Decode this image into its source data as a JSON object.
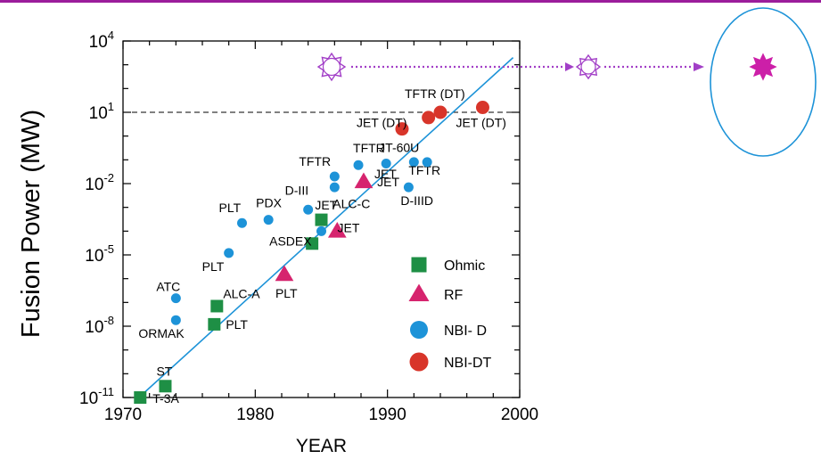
{
  "colors": {
    "top_line": "#9b1d9b",
    "ohmic": "#1e8f45",
    "rf": "#d6246e",
    "nbi_d": "#1d93d8",
    "nbi_dt": "#d8352a",
    "trend": "#1d93d8",
    "target": "#cc1fa8",
    "arrow": "#a23fc7",
    "ellipse": "#1d93d8"
  },
  "chart_data": {
    "type": "scatter",
    "xlabel": "YEAR",
    "ylabel": "Fusion Power (MW)",
    "xlim": [
      1970,
      2000
    ],
    "ylim_exponent": [
      -11,
      4
    ],
    "y_scale": "log10",
    "x_ticks": [
      "1970",
      "1980",
      "1990",
      "2000"
    ],
    "y_ticks": [
      {
        "base": "10",
        "exp": "4",
        "value": 10000.0
      },
      {
        "base": "10",
        "exp": "1",
        "value": 10
      },
      {
        "base": "10",
        "exp": "-2",
        "value": 0.01
      },
      {
        "base": "10",
        "exp": "-5",
        "value": 1e-05
      },
      {
        "base": "10",
        "exp": "-8",
        "value": 1e-08
      },
      {
        "base": "10",
        "exp": "-11",
        "value": 1e-11
      }
    ],
    "reference_line": {
      "y": 10,
      "style": "dashed"
    },
    "trend_line": {
      "points": [
        [
          1971.2,
          1e-11
        ],
        [
          1999.5,
          2000
        ]
      ]
    },
    "legend": {
      "placement": "bottom-right",
      "entries": [
        {
          "series": "Ohmic",
          "label": "Ohmic"
        },
        {
          "series": "RF",
          "label": "RF"
        },
        {
          "series": "NBI-D",
          "label": "NBI- D"
        },
        {
          "series": "NBI-DT",
          "label": "NBI-DT"
        }
      ]
    },
    "series": [
      {
        "name": "Ohmic",
        "marker": "square",
        "points": [
          {
            "x": 1971.3,
            "y": 1e-11,
            "label": "T-3A"
          },
          {
            "x": 1973.2,
            "y": 3e-11,
            "label": "ST"
          },
          {
            "x": 1976.9,
            "y": 1.2e-08,
            "label": "PLT"
          },
          {
            "x": 1977.1,
            "y": 7e-08,
            "label": "ALC-A"
          },
          {
            "x": 1984.3,
            "y": 3e-05,
            "label": "ASDEX"
          },
          {
            "x": 1985.0,
            "y": 0.0003,
            "label": ""
          }
        ]
      },
      {
        "name": "RF",
        "marker": "triangle",
        "points": [
          {
            "x": 1982.2,
            "y": 1.5e-06,
            "label": "PLT"
          },
          {
            "x": 1986.2,
            "y": 0.0001,
            "label": "ALC-C"
          },
          {
            "x": 1988.2,
            "y": 0.012,
            "label": "JET"
          }
        ]
      },
      {
        "name": "NBI-D",
        "marker": "circle",
        "points": [
          {
            "x": 1974.0,
            "y": 1.8e-08,
            "label": "ORMAK"
          },
          {
            "x": 1974.0,
            "y": 1.5e-07,
            "label": "ATC"
          },
          {
            "x": 1978.0,
            "y": 1.2e-05,
            "label": "PLT"
          },
          {
            "x": 1979.0,
            "y": 0.00022,
            "label": "PLT"
          },
          {
            "x": 1981.0,
            "y": 0.0003,
            "label": "PDX"
          },
          {
            "x": 1984.0,
            "y": 0.0008,
            "label": "D-III"
          },
          {
            "x": 1985.0,
            "y": 0.0001,
            "label": "JET"
          },
          {
            "x": 1986.0,
            "y": 0.007,
            "label": "JET"
          },
          {
            "x": 1986.0,
            "y": 0.02,
            "label": "TFTR"
          },
          {
            "x": 1987.8,
            "y": 0.06,
            "label": "TFTR"
          },
          {
            "x": 1989.9,
            "y": 0.07,
            "label": "JT-60U"
          },
          {
            "x": 1991.6,
            "y": 0.007,
            "label": "D-IIID"
          },
          {
            "x": 1992.0,
            "y": 0.08,
            "label": "TFTR"
          },
          {
            "x": 1993.0,
            "y": 0.08,
            "label": "JET"
          }
        ]
      },
      {
        "name": "NBI-DT",
        "marker": "circle",
        "points": [
          {
            "x": 1991.1,
            "y": 2,
            "label": "JET (DT)"
          },
          {
            "x": 1993.1,
            "y": 6,
            "label": ""
          },
          {
            "x": 1994.0,
            "y": 10,
            "label": "TFTR (DT)"
          },
          {
            "x": 1997.2,
            "y": 16,
            "label": "JET (DT)"
          }
        ]
      }
    ]
  }
}
